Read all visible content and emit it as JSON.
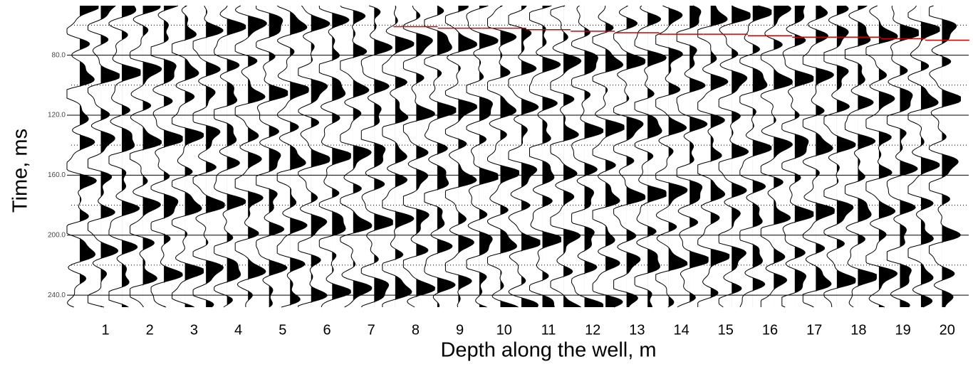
{
  "chart_data": {
    "type": "seismogram",
    "x_label": "Depth along the well, m",
    "y_label": "Time, ms",
    "categories": [
      "1",
      "2",
      "3",
      "4",
      "5",
      "6",
      "7",
      "8",
      "9",
      "10",
      "11",
      "12",
      "13",
      "14",
      "15",
      "16",
      "17",
      "18",
      "19",
      "20"
    ],
    "ylim": [
      47,
      248
    ],
    "y_reversed": true,
    "yticks": [
      {
        "value": 80,
        "label": "80.0"
      },
      {
        "value": 120,
        "label": "120.0"
      },
      {
        "value": 160,
        "label": "160.0"
      },
      {
        "value": 200,
        "label": "200.0"
      },
      {
        "value": 240,
        "label": "240.0"
      }
    ],
    "minor_yticks": [
      60,
      100,
      140,
      180,
      220
    ],
    "grid": true,
    "series": [
      {
        "color": "#d00000",
        "values": [
          null,
          null,
          null,
          null,
          null,
          null,
          null,
          61,
          62,
          62,
          63,
          64,
          65,
          66,
          66,
          67,
          68,
          68,
          69,
          70
        ]
      }
    ]
  }
}
